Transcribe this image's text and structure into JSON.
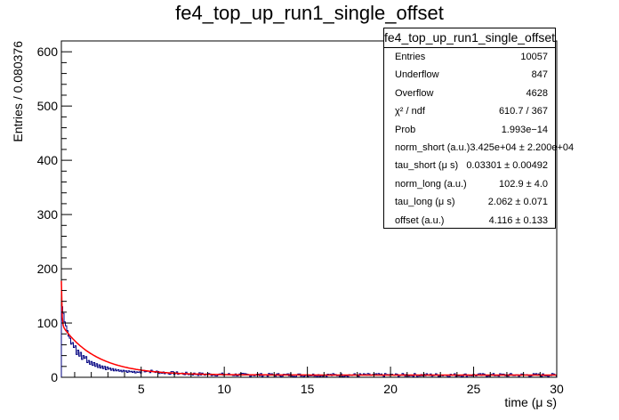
{
  "chart_data": {
    "type": "histogram",
    "title": "fe4_top_up_run1_single_offset",
    "xlabel": "time (μ s)",
    "ylabel": "Entries / 0.080376",
    "xlim": [
      0.2,
      30
    ],
    "ylim": [
      0,
      620
    ],
    "xticks": [
      5,
      10,
      15,
      20,
      25,
      30
    ],
    "yticks": [
      0,
      100,
      200,
      300,
      400,
      500,
      600
    ],
    "grid": false,
    "series": [
      {
        "kind": "histogram",
        "color": "#000080",
        "bin_width": 0.080376,
        "x": [
          0.24,
          0.32,
          0.4,
          0.48,
          0.56,
          0.64,
          0.72,
          0.8,
          0.88,
          0.96,
          1.05,
          1.13,
          1.21,
          1.29,
          1.37,
          1.45,
          1.53,
          1.61,
          1.69,
          1.77,
          1.85,
          1.93,
          2.01,
          2.09,
          2.17,
          2.25,
          2.33,
          2.41,
          2.49,
          2.57,
          2.65,
          2.73,
          2.81,
          2.89,
          2.97,
          3.05,
          3.13,
          3.21,
          3.29,
          3.37,
          3.45,
          3.53,
          3.62,
          3.7,
          3.78,
          3.86,
          3.94,
          4.02,
          4.1,
          4.18,
          4.26,
          4.34,
          4.42,
          4.5,
          4.58,
          4.66,
          4.74,
          4.82,
          4.9,
          4.98
        ],
        "y": [
          130,
          118,
          102,
          95,
          86,
          76,
          72,
          61,
          64,
          55,
          58,
          42,
          50,
          39,
          46,
          33,
          40,
          35,
          38,
          27,
          31,
          24,
          29,
          22,
          27,
          20,
          25,
          18,
          23,
          17,
          21,
          16,
          20,
          14,
          19,
          15,
          17,
          13,
          16,
          12,
          15,
          12,
          14,
          11,
          13,
          10,
          13,
          11,
          12,
          9,
          12,
          10,
          11,
          9,
          11,
          8,
          10,
          9,
          10,
          8
        ]
      },
      {
        "kind": "fit",
        "color": "#ff0000",
        "function": "norm_short*exp(-t/tau_short) + norm_long*exp(-t/tau_long) + offset",
        "params": {
          "norm_short": 34250,
          "tau_short": 0.03301,
          "norm_long": 102.9,
          "tau_long": 2.062,
          "offset": 4.116
        }
      }
    ],
    "tail_level": 4.1
  },
  "stats_box": {
    "title": "fe4_top_up_run1_single_offset",
    "rows": [
      {
        "label": "Entries",
        "value": "10057"
      },
      {
        "label": "Underflow",
        "value": "847"
      },
      {
        "label": "Overflow",
        "value": "4628"
      },
      {
        "label": "χ² / ndf",
        "value": "610.7 / 367"
      },
      {
        "label": "Prob",
        "value": "1.993e−14"
      },
      {
        "label": "norm_short (a.u.)",
        "value": "3.425e+04 ± 2.200e+04"
      },
      {
        "label": "tau_short (μ s)",
        "value": "0.03301 ± 0.00492"
      },
      {
        "label": "norm_long (a.u.)",
        "value": "102.9 ± 4.0"
      },
      {
        "label": "tau_long (μ s)",
        "value": "2.062 ± 0.071"
      },
      {
        "label": "offset (a.u.)",
        "value": "4.116 ± 0.133"
      }
    ]
  }
}
